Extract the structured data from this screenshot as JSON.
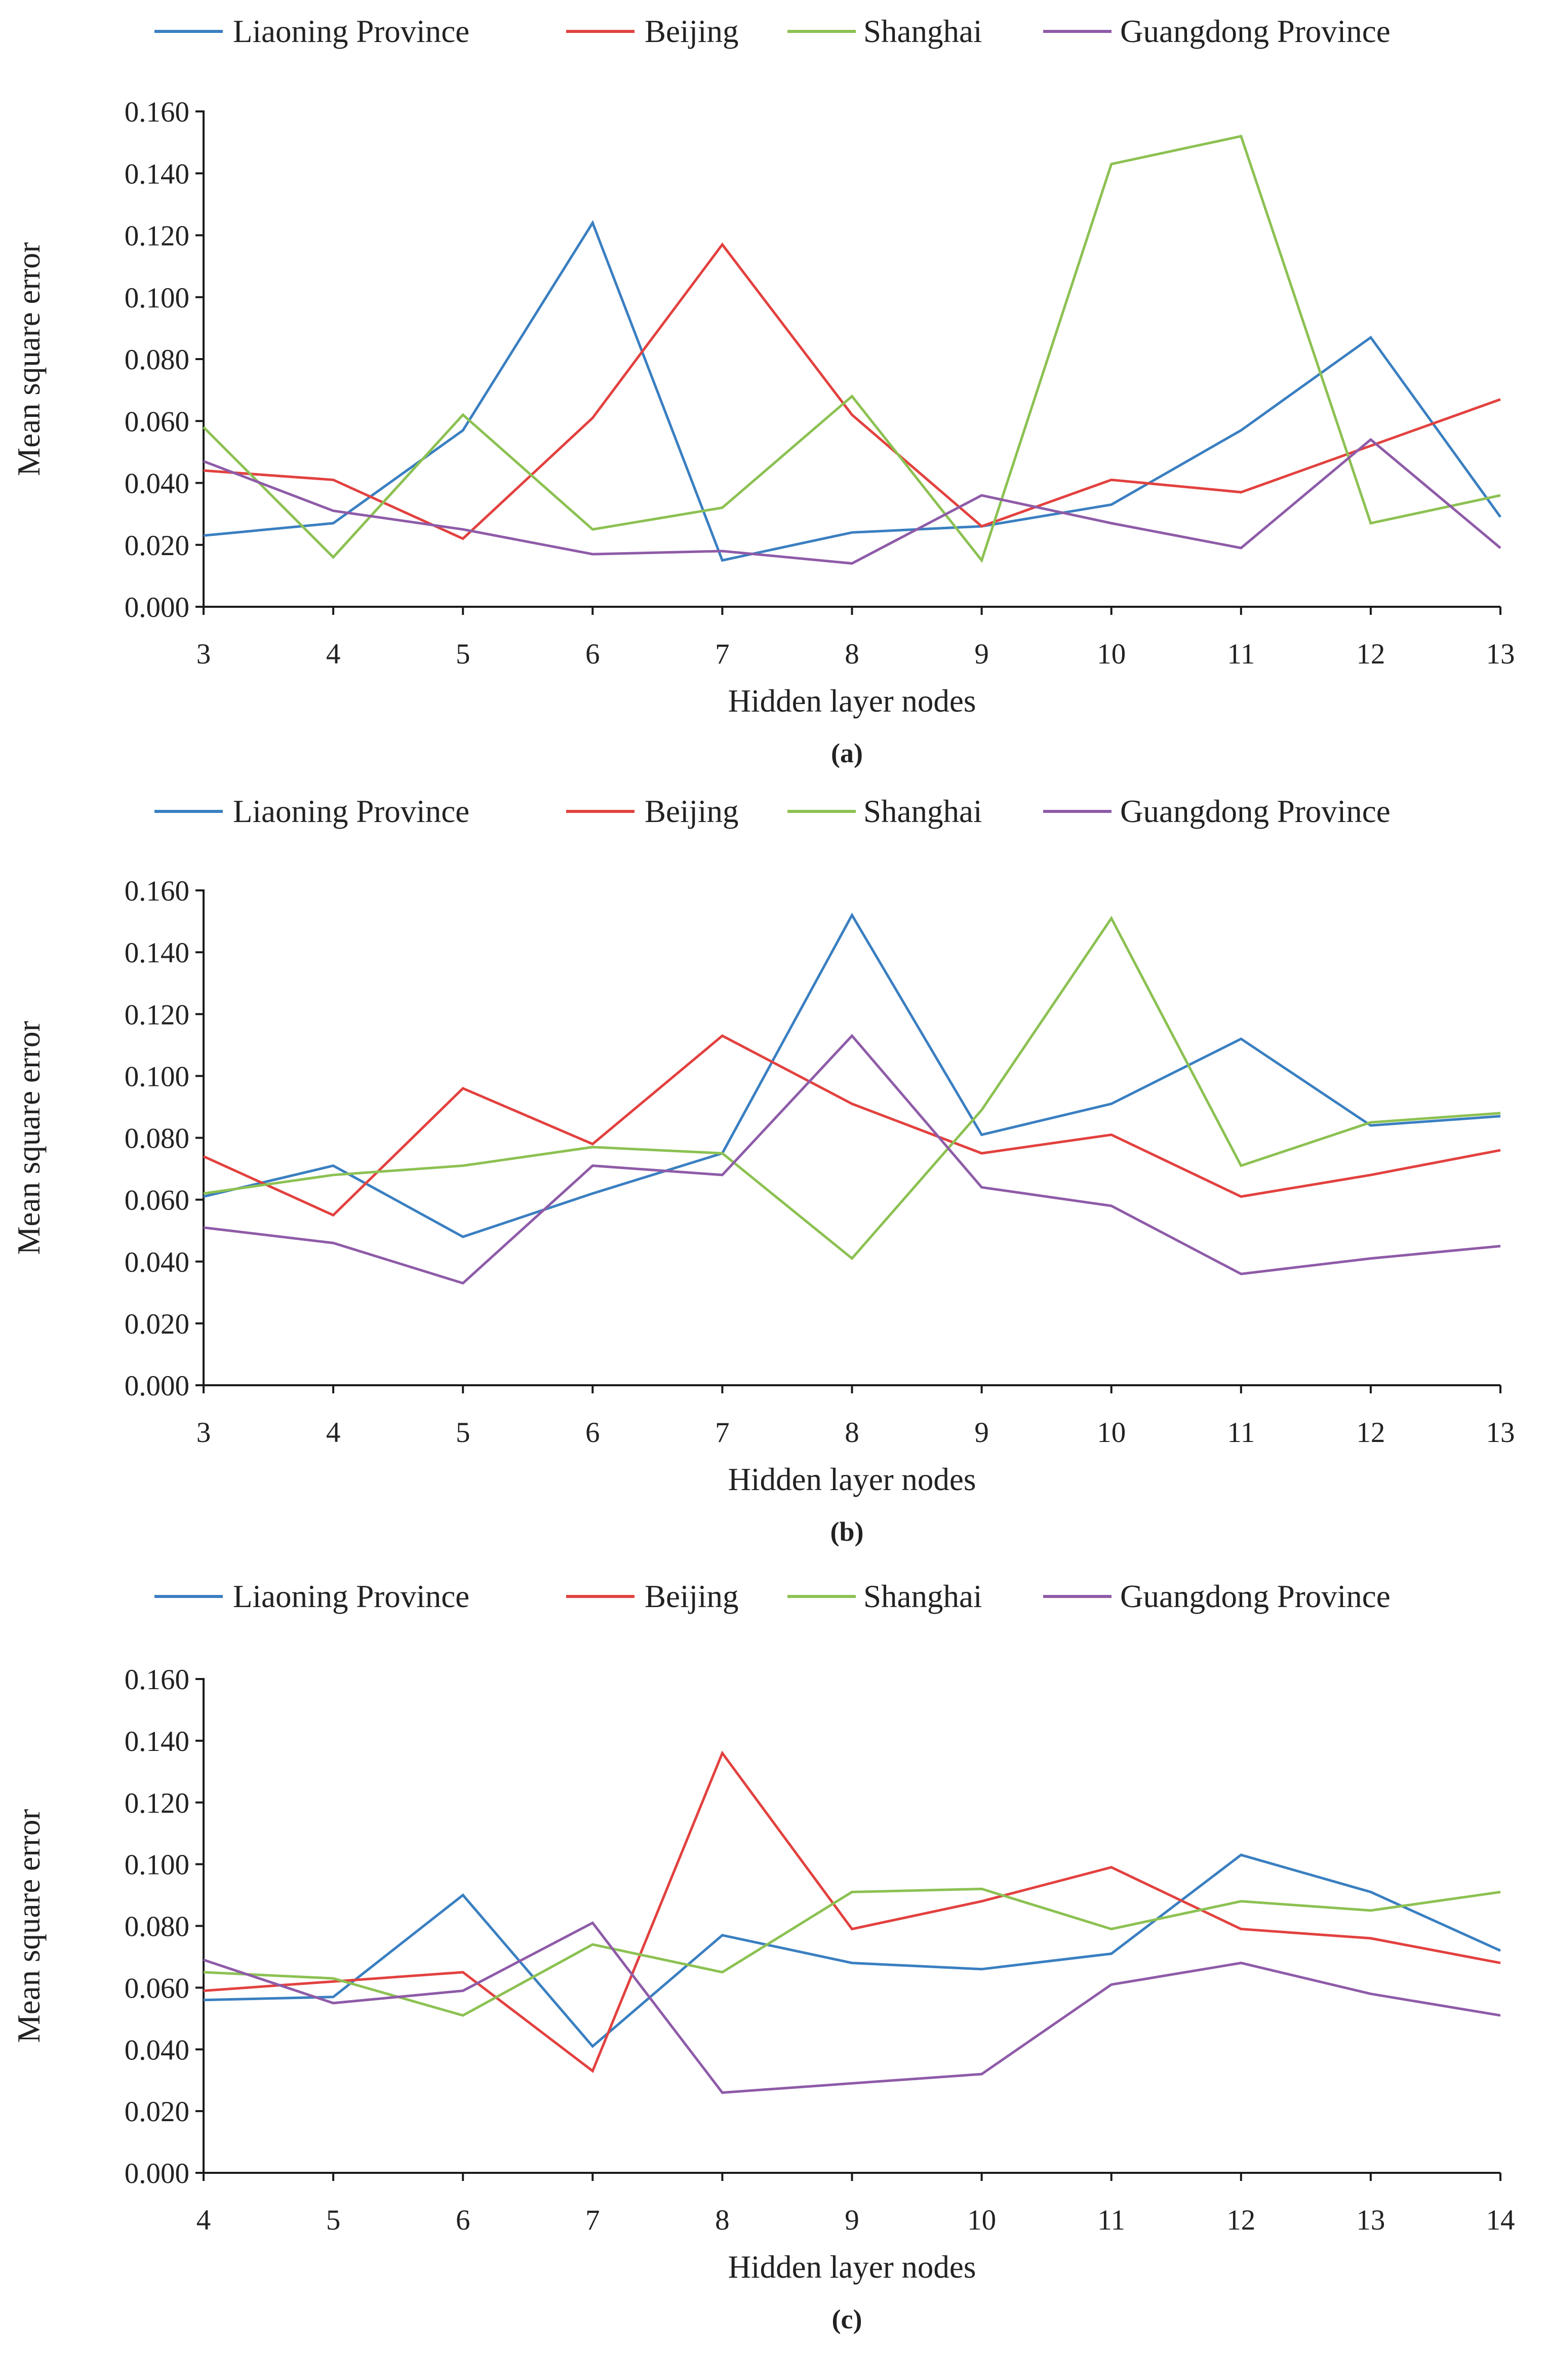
{
  "colors": {
    "Liaoning Province": "#3a7fc1",
    "Beijing": "#e2413f",
    "Shanghai": "#8cc152",
    "Guangdong Province": "#8e5ba8"
  },
  "chart_data": [
    {
      "type": "line",
      "panel_label": "(a)",
      "xlabel": "Hidden layer nodes",
      "ylabel": "Mean square error",
      "x": [
        3,
        4,
        5,
        6,
        7,
        8,
        9,
        10,
        11,
        12,
        13
      ],
      "ylim": [
        0,
        0.16
      ],
      "yticks": [
        "0.000",
        "0.020",
        "0.040",
        "0.060",
        "0.080",
        "0.100",
        "0.120",
        "0.140",
        "0.160"
      ],
      "legend_position": "top",
      "series": [
        {
          "name": "Liaoning Province",
          "values": [
            0.023,
            0.027,
            0.057,
            0.124,
            0.015,
            0.024,
            0.026,
            0.033,
            0.057,
            0.087,
            0.029
          ]
        },
        {
          "name": "Beijing",
          "values": [
            0.044,
            0.041,
            0.022,
            0.061,
            0.117,
            0.062,
            0.026,
            0.041,
            0.037,
            0.052,
            0.067
          ]
        },
        {
          "name": "Shanghai",
          "values": [
            0.058,
            0.016,
            0.062,
            0.025,
            0.032,
            0.068,
            0.015,
            0.143,
            0.152,
            0.027,
            0.036
          ]
        },
        {
          "name": "Guangdong Province",
          "values": [
            0.047,
            0.031,
            0.025,
            0.017,
            0.018,
            0.014,
            0.036,
            0.027,
            0.019,
            0.054,
            0.019
          ]
        }
      ]
    },
    {
      "type": "line",
      "panel_label": "(b)",
      "xlabel": "Hidden layer nodes",
      "ylabel": "Mean square error",
      "x": [
        3,
        4,
        5,
        6,
        7,
        8,
        9,
        10,
        11,
        12,
        13
      ],
      "ylim": [
        0,
        0.16
      ],
      "yticks": [
        "0.000",
        "0.020",
        "0.040",
        "0.060",
        "0.080",
        "0.100",
        "0.120",
        "0.140",
        "0.160"
      ],
      "legend_position": "top",
      "series": [
        {
          "name": "Liaoning Province",
          "values": [
            0.061,
            0.071,
            0.048,
            0.062,
            0.075,
            0.152,
            0.081,
            0.091,
            0.112,
            0.084,
            0.087
          ]
        },
        {
          "name": "Beijing",
          "values": [
            0.074,
            0.055,
            0.096,
            0.078,
            0.113,
            0.091,
            0.075,
            0.081,
            0.061,
            0.068,
            0.076
          ]
        },
        {
          "name": "Shanghai",
          "values": [
            0.062,
            0.068,
            0.071,
            0.077,
            0.075,
            0.041,
            0.089,
            0.151,
            0.071,
            0.085,
            0.088
          ]
        },
        {
          "name": "Guangdong Province",
          "values": [
            0.051,
            0.046,
            0.033,
            0.071,
            0.068,
            0.113,
            0.064,
            0.058,
            0.036,
            0.041,
            0.045
          ]
        }
      ]
    },
    {
      "type": "line",
      "panel_label": "(c)",
      "xlabel": "Hidden layer nodes",
      "ylabel": "Mean square error",
      "x": [
        4,
        5,
        6,
        7,
        8,
        9,
        10,
        11,
        12,
        13,
        14
      ],
      "ylim": [
        0,
        0.16
      ],
      "yticks": [
        "0.000",
        "0.020",
        "0.040",
        "0.060",
        "0.080",
        "0.100",
        "0.120",
        "0.140",
        "0.160"
      ],
      "legend_position": "top",
      "series": [
        {
          "name": "Liaoning Province",
          "values": [
            0.056,
            0.057,
            0.09,
            0.041,
            0.077,
            0.068,
            0.066,
            0.071,
            0.103,
            0.091,
            0.072
          ]
        },
        {
          "name": "Beijing",
          "values": [
            0.059,
            0.062,
            0.065,
            0.033,
            0.136,
            0.079,
            0.088,
            0.099,
            0.079,
            0.076,
            0.068
          ]
        },
        {
          "name": "Shanghai",
          "values": [
            0.065,
            0.063,
            0.051,
            0.074,
            0.065,
            0.091,
            0.092,
            0.079,
            0.088,
            0.085,
            0.091
          ]
        },
        {
          "name": "Guangdong Province",
          "values": [
            0.069,
            0.055,
            0.059,
            0.081,
            0.026,
            0.029,
            0.032,
            0.061,
            0.068,
            0.058,
            0.051
          ]
        }
      ]
    }
  ]
}
